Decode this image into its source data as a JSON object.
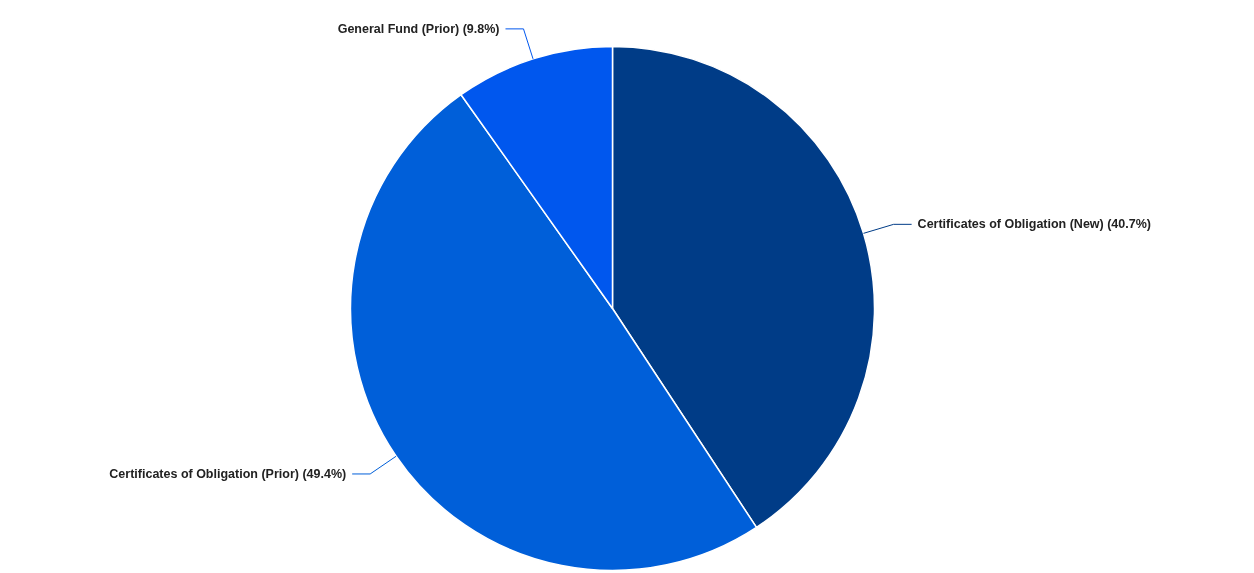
{
  "chart_data": {
    "type": "pie",
    "categories": [
      "Certificates of Obligation (New)",
      "Certificates of Obligation (Prior)",
      "General Fund (Prior)"
    ],
    "values": [
      40.7,
      49.4,
      9.8
    ],
    "value_labels": [
      "(40.7%)",
      "(49.4%)",
      "(9.8%)"
    ],
    "colors": [
      "#003c87",
      "#005fd9",
      "#0057ee"
    ]
  }
}
